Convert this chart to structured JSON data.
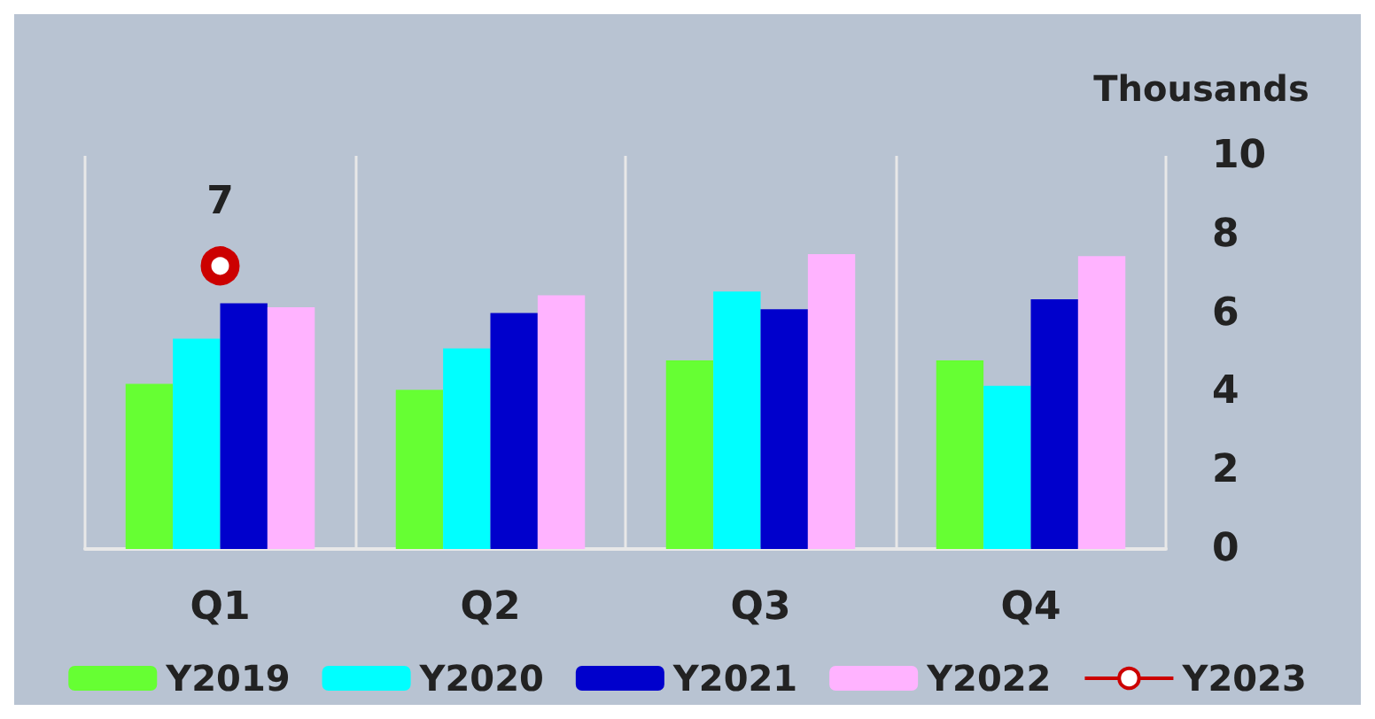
{
  "chart_data": {
    "type": "bar",
    "ylabel": "Thousands",
    "categories": [
      "Q1",
      "Q2",
      "Q3",
      "Q4"
    ],
    "series": [
      {
        "name": "Y2019",
        "color": "#66ff33",
        "values": [
          4.2,
          4.05,
          4.8,
          4.8
        ]
      },
      {
        "name": "Y2020",
        "color": "#00ffff",
        "values": [
          5.35,
          5.1,
          6.55,
          4.15
        ]
      },
      {
        "name": "Y2021",
        "color": "#0000cc",
        "values": [
          6.25,
          6.0,
          6.1,
          6.35
        ]
      },
      {
        "name": "Y2022",
        "color": "#ffb3ff",
        "values": [
          6.15,
          6.45,
          7.5,
          7.45
        ]
      },
      {
        "name": "Y2023",
        "type": "line",
        "color": "#cc0000",
        "marker": "circle",
        "values": [
          7.2,
          null,
          null,
          null
        ],
        "value_labels": [
          "7",
          null,
          null,
          null
        ]
      }
    ],
    "ylim": [
      0,
      10
    ],
    "yticks": [
      0,
      2,
      4,
      6,
      8,
      10
    ],
    "grid": "x",
    "legend": "bottom"
  }
}
